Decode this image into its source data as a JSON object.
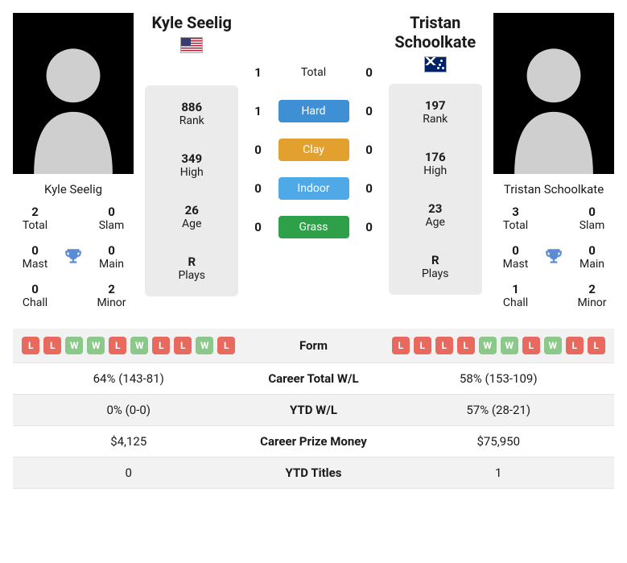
{
  "player1": {
    "name": "Kyle Seelig",
    "flag": "us",
    "photo_silhouette": "#cfcfcf",
    "rank": "886",
    "high": "349",
    "age": "26",
    "plays": "R",
    "titles": {
      "total": "2",
      "slam": "0",
      "mast": "0",
      "main": "0",
      "chall": "0",
      "minor": "2"
    },
    "form": [
      "L",
      "L",
      "W",
      "W",
      "L",
      "W",
      "L",
      "L",
      "W",
      "L"
    ],
    "career_wl": "64% (143-81)",
    "ytd_wl": "0% (0-0)",
    "prize": "$4,125",
    "ytd_titles": "0"
  },
  "player2": {
    "name": "Tristan Schoolkate",
    "flag": "au",
    "photo_silhouette": "#cfcfcf",
    "rank": "197",
    "high": "176",
    "age": "23",
    "plays": "R",
    "titles": {
      "total": "3",
      "slam": "0",
      "mast": "0",
      "main": "0",
      "chall": "1",
      "minor": "2"
    },
    "form": [
      "L",
      "L",
      "L",
      "L",
      "W",
      "W",
      "L",
      "W",
      "L",
      "L"
    ],
    "career_wl": "58% (153-109)",
    "ytd_wl": "57% (28-21)",
    "prize": "$75,950",
    "ytd_titles": "1"
  },
  "info_labels": {
    "rank": "Rank",
    "high": "High",
    "age": "Age",
    "plays": "Plays"
  },
  "title_labels": {
    "total": "Total",
    "slam": "Slam",
    "mast": "Mast",
    "main": "Main",
    "chall": "Chall",
    "minor": "Minor"
  },
  "h2h": {
    "rows": [
      {
        "p1": "1",
        "label": "Total",
        "p2": "0",
        "bg": null
      },
      {
        "p1": "1",
        "label": "Hard",
        "p2": "0",
        "bg": "#3f8fd4"
      },
      {
        "p1": "0",
        "label": "Clay",
        "p2": "0",
        "bg": "#e2a12f"
      },
      {
        "p1": "0",
        "label": "Indoor",
        "p2": "0",
        "bg": "#4ea9e6"
      },
      {
        "p1": "0",
        "label": "Grass",
        "p2": "0",
        "bg": "#2fa04a"
      }
    ]
  },
  "stats_rows": [
    {
      "label": "Form",
      "type": "form"
    },
    {
      "label": "Career Total W/L",
      "type": "text",
      "k": "career_wl"
    },
    {
      "label": "YTD W/L",
      "type": "text",
      "k": "ytd_wl"
    },
    {
      "label": "Career Prize Money",
      "type": "text",
      "k": "prize"
    },
    {
      "label": "YTD Titles",
      "type": "text",
      "k": "ytd_titles"
    }
  ],
  "colors": {
    "form_win": "#8bc98b",
    "form_loss": "#e86a5f",
    "trophy": "#5b8bd4",
    "info_bg": "#ebebeb"
  }
}
